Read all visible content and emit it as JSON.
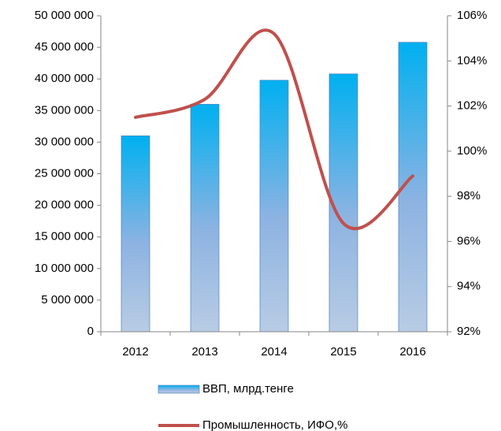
{
  "chart_data": {
    "type": "bar",
    "categories": [
      "2012",
      "2013",
      "2014",
      "2015",
      "2016"
    ],
    "series": [
      {
        "name": "ВВП, млрд.тенге",
        "type": "bar",
        "color": "#00b0f0",
        "values": [
          31000000,
          36000000,
          39800000,
          40800000,
          45800000
        ]
      },
      {
        "name": "Промышленность, ИФО,%",
        "type": "line",
        "axis": "y2",
        "color": "#c0504d",
        "values": [
          101.5,
          102.3,
          105.2,
          96.8,
          98.9
        ]
      }
    ],
    "ylim": [
      0,
      50000000
    ],
    "yticks": [
      0,
      {
        "value": 5000000,
        "label": "5 000 000"
      },
      {
        "value": 10000000,
        "label": "10 000 000"
      },
      {
        "value": 15000000,
        "label": "15 000 000"
      },
      {
        "value": 20000000,
        "label": "20 000 000"
      },
      {
        "value": 25000000,
        "label": "25 000 000"
      },
      {
        "value": 30000000,
        "label": "30 000 000"
      },
      {
        "value": 35000000,
        "label": "35 000 000"
      },
      {
        "value": 40000000,
        "label": "40 000 000"
      },
      {
        "value": 45000000,
        "label": "45 000 000"
      },
      {
        "value": 50000000,
        "label": "50 000 000"
      }
    ],
    "y2lim": [
      92,
      106
    ],
    "y2ticks": [
      {
        "value": 92,
        "label": "92%"
      },
      {
        "value": 94,
        "label": "94%"
      },
      {
        "value": 96,
        "label": "96%"
      },
      {
        "value": 98,
        "label": "98%"
      },
      {
        "value": 100,
        "label": "100%"
      },
      {
        "value": 102,
        "label": "102%"
      },
      {
        "value": 104,
        "label": "104%"
      },
      {
        "value": 106,
        "label": "106%"
      }
    ],
    "legend": "bottom"
  }
}
